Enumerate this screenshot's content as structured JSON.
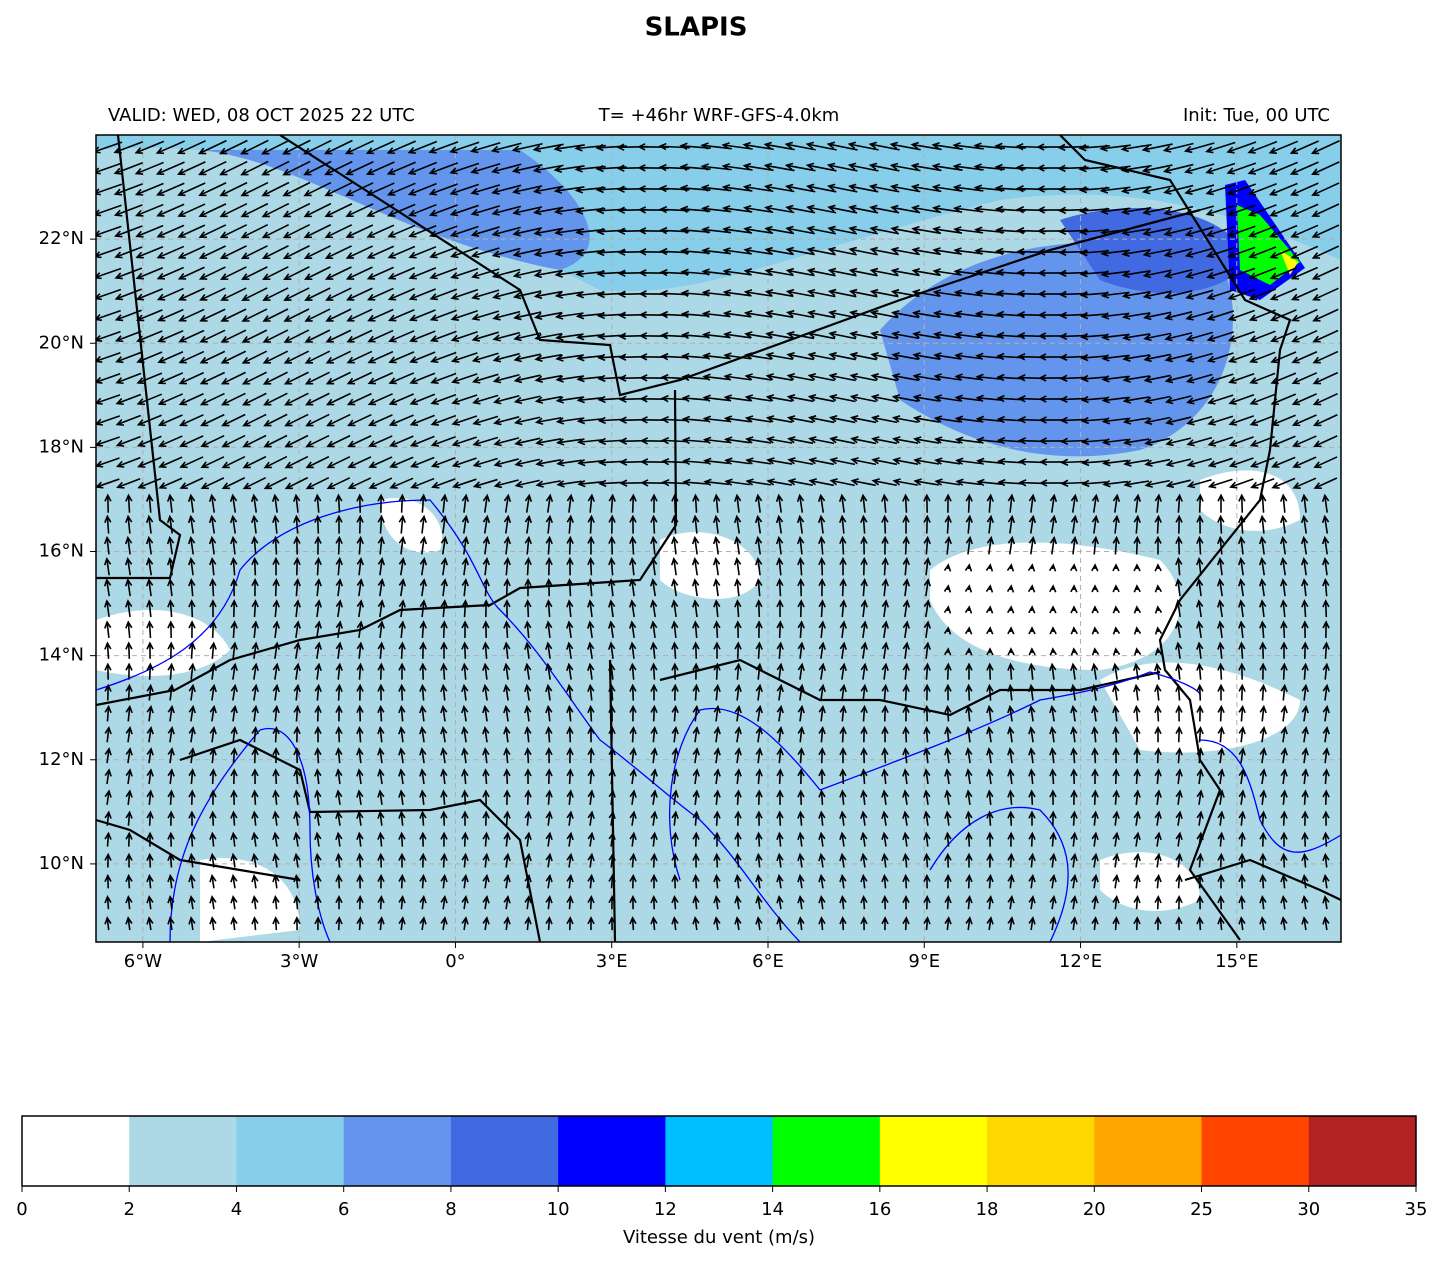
{
  "title": "SLAPIS",
  "header": {
    "left": "VALID: WED, 08 OCT 2025 22 UTC",
    "center": "T= +46hr WRF-GFS-4.0km",
    "right": "Init: Tue, 00 UTC"
  },
  "map": {
    "lonlim": [
      -6.9,
      17
    ],
    "latlim": [
      8.5,
      24
    ],
    "lon_ticks": [
      {
        "value": -6,
        "label": "6°W"
      },
      {
        "value": -3,
        "label": "3°W"
      },
      {
        "value": 0,
        "label": "0°"
      },
      {
        "value": 3,
        "label": "3°E"
      },
      {
        "value": 6,
        "label": "6°E"
      },
      {
        "value": 9,
        "label": "9°E"
      },
      {
        "value": 12,
        "label": "12°E"
      },
      {
        "value": 15,
        "label": "15°E"
      }
    ],
    "lat_ticks": [
      {
        "value": 10,
        "label": "10°N"
      },
      {
        "value": 12,
        "label": "12°N"
      },
      {
        "value": 14,
        "label": "14°N"
      },
      {
        "value": 16,
        "label": "16°N"
      },
      {
        "value": 18,
        "label": "18°N"
      },
      {
        "value": 20,
        "label": "20°N"
      },
      {
        "value": 22,
        "label": "22°N"
      }
    ],
    "grid": true
  },
  "colorbar": {
    "levels": [
      0,
      2,
      4,
      6,
      8,
      10,
      12,
      14,
      16,
      18,
      20,
      25,
      30,
      35
    ],
    "colors": [
      "#ffffff",
      "#add8e6",
      "#87ceeb",
      "#6495ed",
      "#4169e1",
      "#0000ff",
      "#00bfff",
      "#00ff00",
      "#ffff00",
      "#ffd700",
      "#ffa500",
      "#ff4500",
      "#b22222"
    ],
    "label": "Vitesse du vent (m/s)"
  }
}
